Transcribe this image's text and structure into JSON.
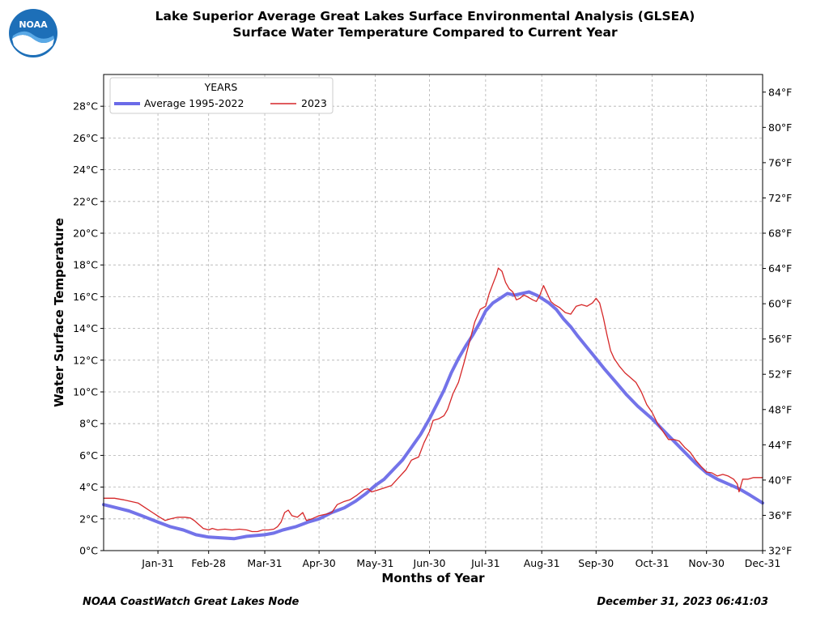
{
  "header": {
    "title_line1": "Lake Superior Average Great Lakes Surface Environmental Analysis (GLSEA)",
    "title_line2": "Surface Water Temperature Compared to Current Year",
    "logo_text": "NOAA"
  },
  "footer": {
    "left": "NOAA CoastWatch Great Lakes Node",
    "right": "December 31, 2023 06:41:03"
  },
  "colors": {
    "average": "#6b6be8",
    "current": "#d62728",
    "grid": "#b0b0b0"
  },
  "chart_data": {
    "type": "line",
    "xlabel": "Months of Year",
    "ylabel": "Water Surface Temperature",
    "xlim": [
      1,
      365
    ],
    "ylim": [
      0,
      30
    ],
    "ylim_right": [
      32,
      86
    ],
    "x_ticks": [
      {
        "day": 31,
        "label": "Jan-31"
      },
      {
        "day": 59,
        "label": "Feb-28"
      },
      {
        "day": 90,
        "label": "Mar-31"
      },
      {
        "day": 120,
        "label": "Apr-30"
      },
      {
        "day": 151,
        "label": "May-31"
      },
      {
        "day": 181,
        "label": "Jun-30"
      },
      {
        "day": 212,
        "label": "Jul-31"
      },
      {
        "day": 243,
        "label": "Aug-31"
      },
      {
        "day": 273,
        "label": "Sep-30"
      },
      {
        "day": 304,
        "label": "Oct-31"
      },
      {
        "day": 334,
        "label": "Nov-30"
      },
      {
        "day": 365,
        "label": "Dec-31"
      }
    ],
    "y_ticks": [
      {
        "v": 0,
        "label": "0°C"
      },
      {
        "v": 2,
        "label": "2°C"
      },
      {
        "v": 4,
        "label": "4°C"
      },
      {
        "v": 6,
        "label": "6°C"
      },
      {
        "v": 8,
        "label": "8°C"
      },
      {
        "v": 10,
        "label": "10°C"
      },
      {
        "v": 12,
        "label": "12°C"
      },
      {
        "v": 14,
        "label": "14°C"
      },
      {
        "v": 16,
        "label": "16°C"
      },
      {
        "v": 18,
        "label": "18°C"
      },
      {
        "v": 20,
        "label": "20°C"
      },
      {
        "v": 22,
        "label": "22°C"
      },
      {
        "v": 24,
        "label": "24°C"
      },
      {
        "v": 26,
        "label": "26°C"
      },
      {
        "v": 28,
        "label": "28°C"
      }
    ],
    "y_ticks_right": [
      {
        "v": 32,
        "label": "32°F"
      },
      {
        "v": 36,
        "label": "36°F"
      },
      {
        "v": 40,
        "label": "40°F"
      },
      {
        "v": 44,
        "label": "44°F"
      },
      {
        "v": 48,
        "label": "48°F"
      },
      {
        "v": 52,
        "label": "52°F"
      },
      {
        "v": 56,
        "label": "56°F"
      },
      {
        "v": 60,
        "label": "60°F"
      },
      {
        "v": 64,
        "label": "64°F"
      },
      {
        "v": 68,
        "label": "68°F"
      },
      {
        "v": 72,
        "label": "72°F"
      },
      {
        "v": 76,
        "label": "76°F"
      },
      {
        "v": 80,
        "label": "80°F"
      },
      {
        "v": 84,
        "label": "84°F"
      }
    ],
    "grid": true,
    "legend": {
      "title": "YEARS",
      "placement": "top-left"
    },
    "series": [
      {
        "name": "Average 1995-2022",
        "color": "#6b6be8",
        "points": [
          [
            1,
            2.9
          ],
          [
            8,
            2.7
          ],
          [
            15,
            2.5
          ],
          [
            22,
            2.2
          ],
          [
            31,
            1.8
          ],
          [
            38,
            1.5
          ],
          [
            45,
            1.3
          ],
          [
            52,
            1.0
          ],
          [
            59,
            0.85
          ],
          [
            66,
            0.8
          ],
          [
            73,
            0.75
          ],
          [
            80,
            0.9
          ],
          [
            90,
            1.0
          ],
          [
            95,
            1.1
          ],
          [
            100,
            1.3
          ],
          [
            107,
            1.5
          ],
          [
            114,
            1.8
          ],
          [
            120,
            2.0
          ],
          [
            127,
            2.4
          ],
          [
            134,
            2.7
          ],
          [
            140,
            3.1
          ],
          [
            146,
            3.6
          ],
          [
            151,
            4.1
          ],
          [
            156,
            4.5
          ],
          [
            161,
            5.1
          ],
          [
            166,
            5.7
          ],
          [
            171,
            6.5
          ],
          [
            176,
            7.3
          ],
          [
            181,
            8.3
          ],
          [
            185,
            9.2
          ],
          [
            189,
            10.1
          ],
          [
            193,
            11.2
          ],
          [
            197,
            12.1
          ],
          [
            201,
            12.9
          ],
          [
            205,
            13.6
          ],
          [
            209,
            14.4
          ],
          [
            212,
            15.1
          ],
          [
            216,
            15.6
          ],
          [
            220,
            15.9
          ],
          [
            224,
            16.2
          ],
          [
            228,
            16.1
          ],
          [
            232,
            16.2
          ],
          [
            236,
            16.3
          ],
          [
            240,
            16.1
          ],
          [
            243,
            15.9
          ],
          [
            247,
            15.6
          ],
          [
            251,
            15.2
          ],
          [
            255,
            14.6
          ],
          [
            259,
            14.1
          ],
          [
            263,
            13.5
          ],
          [
            268,
            12.8
          ],
          [
            273,
            12.1
          ],
          [
            278,
            11.4
          ],
          [
            284,
            10.6
          ],
          [
            290,
            9.8
          ],
          [
            296,
            9.1
          ],
          [
            304,
            8.3
          ],
          [
            310,
            7.6
          ],
          [
            316,
            6.9
          ],
          [
            322,
            6.2
          ],
          [
            328,
            5.5
          ],
          [
            334,
            4.9
          ],
          [
            340,
            4.5
          ],
          [
            346,
            4.2
          ],
          [
            352,
            3.9
          ],
          [
            358,
            3.5
          ],
          [
            365,
            3.0
          ]
        ]
      },
      {
        "name": "2023",
        "color": "#d62728",
        "points": [
          [
            1,
            3.3
          ],
          [
            7,
            3.3
          ],
          [
            12,
            3.2
          ],
          [
            16,
            3.1
          ],
          [
            20,
            3.0
          ],
          [
            24,
            2.7
          ],
          [
            28,
            2.4
          ],
          [
            32,
            2.1
          ],
          [
            35,
            1.9
          ],
          [
            38,
            2.0
          ],
          [
            42,
            2.1
          ],
          [
            46,
            2.1
          ],
          [
            49,
            2.05
          ],
          [
            51,
            1.9
          ],
          [
            54,
            1.6
          ],
          [
            56,
            1.4
          ],
          [
            59,
            1.3
          ],
          [
            61,
            1.4
          ],
          [
            64,
            1.3
          ],
          [
            68,
            1.35
          ],
          [
            72,
            1.3
          ],
          [
            76,
            1.35
          ],
          [
            80,
            1.3
          ],
          [
            83,
            1.2
          ],
          [
            86,
            1.2
          ],
          [
            89,
            1.3
          ],
          [
            92,
            1.3
          ],
          [
            95,
            1.35
          ],
          [
            97,
            1.5
          ],
          [
            99,
            1.8
          ],
          [
            101,
            2.4
          ],
          [
            103,
            2.55
          ],
          [
            105,
            2.2
          ],
          [
            108,
            2.1
          ],
          [
            111,
            2.4
          ],
          [
            113,
            1.9
          ],
          [
            116,
            2.0
          ],
          [
            120,
            2.2
          ],
          [
            124,
            2.3
          ],
          [
            127,
            2.4
          ],
          [
            130,
            2.9
          ],
          [
            134,
            3.1
          ],
          [
            137,
            3.2
          ],
          [
            141,
            3.5
          ],
          [
            145,
            3.85
          ],
          [
            147,
            3.9
          ],
          [
            149,
            3.7
          ],
          [
            152,
            3.8
          ],
          [
            156,
            3.95
          ],
          [
            160,
            4.1
          ],
          [
            164,
            4.6
          ],
          [
            168,
            5.1
          ],
          [
            171,
            5.7
          ],
          [
            175,
            5.9
          ],
          [
            178,
            6.8
          ],
          [
            181,
            7.5
          ],
          [
            183,
            8.2
          ],
          [
            186,
            8.3
          ],
          [
            189,
            8.5
          ],
          [
            191,
            8.9
          ],
          [
            194,
            9.9
          ],
          [
            197,
            10.6
          ],
          [
            200,
            11.8
          ],
          [
            203,
            13.1
          ],
          [
            206,
            14.4
          ],
          [
            209,
            15.2
          ],
          [
            212,
            15.4
          ],
          [
            214,
            16.2
          ],
          [
            216,
            16.8
          ],
          [
            218,
            17.4
          ],
          [
            219,
            17.8
          ],
          [
            221,
            17.6
          ],
          [
            223,
            16.9
          ],
          [
            225,
            16.5
          ],
          [
            227,
            16.3
          ],
          [
            229,
            15.8
          ],
          [
            231,
            15.9
          ],
          [
            233,
            16.1
          ],
          [
            235,
            16.0
          ],
          [
            238,
            15.8
          ],
          [
            240,
            15.7
          ],
          [
            242,
            16.1
          ],
          [
            244,
            16.7
          ],
          [
            246,
            16.2
          ],
          [
            248,
            15.7
          ],
          [
            250,
            15.5
          ],
          [
            253,
            15.3
          ],
          [
            256,
            15.0
          ],
          [
            259,
            14.9
          ],
          [
            262,
            15.4
          ],
          [
            265,
            15.5
          ],
          [
            268,
            15.4
          ],
          [
            271,
            15.6
          ],
          [
            273,
            15.9
          ],
          [
            275,
            15.6
          ],
          [
            277,
            14.7
          ],
          [
            279,
            13.6
          ],
          [
            281,
            12.6
          ],
          [
            283,
            12.1
          ],
          [
            286,
            11.6
          ],
          [
            289,
            11.2
          ],
          [
            292,
            10.9
          ],
          [
            295,
            10.6
          ],
          [
            298,
            10.0
          ],
          [
            301,
            9.2
          ],
          [
            304,
            8.7
          ],
          [
            307,
            8.0
          ],
          [
            310,
            7.5
          ],
          [
            313,
            7.0
          ],
          [
            316,
            7.0
          ],
          [
            319,
            6.9
          ],
          [
            322,
            6.5
          ],
          [
            325,
            6.2
          ],
          [
            328,
            5.7
          ],
          [
            331,
            5.3
          ],
          [
            334,
            4.95
          ],
          [
            337,
            4.9
          ],
          [
            340,
            4.7
          ],
          [
            343,
            4.8
          ],
          [
            346,
            4.7
          ],
          [
            349,
            4.5
          ],
          [
            351,
            4.2
          ],
          [
            352,
            3.7
          ],
          [
            354,
            4.5
          ],
          [
            357,
            4.5
          ],
          [
            360,
            4.6
          ],
          [
            365,
            4.6
          ]
        ]
      }
    ]
  }
}
